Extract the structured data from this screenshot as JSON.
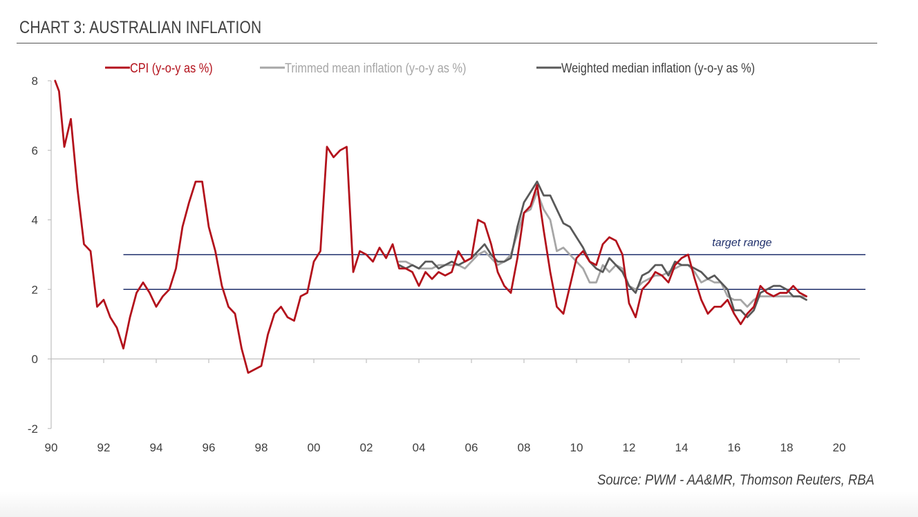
{
  "header": {
    "title": "CHART 3: AUSTRALIAN INFLATION"
  },
  "footer": {
    "source": "Source: PWM - AA&MR, Thomson Reuters, RBA"
  },
  "chart_data": {
    "type": "line",
    "title": "CHART 3: AUSTRALIAN INFLATION",
    "xlabel": "",
    "ylabel": "",
    "xlim": [
      1990,
      2021
    ],
    "ylim": [
      -2,
      8
    ],
    "x_ticks": [
      {
        "value": 1990,
        "label": "90"
      },
      {
        "value": 1992,
        "label": "92"
      },
      {
        "value": 1994,
        "label": "94"
      },
      {
        "value": 1996,
        "label": "96"
      },
      {
        "value": 1998,
        "label": "98"
      },
      {
        "value": 2000,
        "label": "00"
      },
      {
        "value": 2002,
        "label": "02"
      },
      {
        "value": 2004,
        "label": "04"
      },
      {
        "value": 2006,
        "label": "06"
      },
      {
        "value": 2008,
        "label": "08"
      },
      {
        "value": 2010,
        "label": "10"
      },
      {
        "value": 2012,
        "label": "12"
      },
      {
        "value": 2014,
        "label": "14"
      },
      {
        "value": 2016,
        "label": "16"
      },
      {
        "value": 2018,
        "label": "18"
      },
      {
        "value": 2020,
        "label": "20"
      }
    ],
    "y_ticks": [
      {
        "value": 8,
        "label": "8"
      },
      {
        "value": 6,
        "label": "6"
      },
      {
        "value": 4,
        "label": "4"
      },
      {
        "value": 2,
        "label": "2"
      },
      {
        "value": 0,
        "label": "0"
      },
      {
        "value": -2,
        "label": "-2"
      }
    ],
    "legend_position": "top",
    "series": [
      {
        "name": "CPI (y-o-y as %)",
        "color": "#b3121c",
        "points": [
          [
            1990.15,
            8.0
          ],
          [
            1990.3,
            7.7
          ],
          [
            1990.5,
            6.1
          ],
          [
            1990.75,
            6.9
          ],
          [
            1991.0,
            4.9
          ],
          [
            1991.25,
            3.3
          ],
          [
            1991.5,
            3.1
          ],
          [
            1991.75,
            1.5
          ],
          [
            1992.0,
            1.7
          ],
          [
            1992.25,
            1.2
          ],
          [
            1992.5,
            0.9
          ],
          [
            1992.75,
            0.3
          ],
          [
            1993.0,
            1.2
          ],
          [
            1993.25,
            1.9
          ],
          [
            1993.5,
            2.2
          ],
          [
            1993.75,
            1.9
          ],
          [
            1994.0,
            1.5
          ],
          [
            1994.25,
            1.8
          ],
          [
            1994.5,
            2.0
          ],
          [
            1994.75,
            2.6
          ],
          [
            1995.0,
            3.8
          ],
          [
            1995.25,
            4.5
          ],
          [
            1995.5,
            5.1
          ],
          [
            1995.75,
            5.1
          ],
          [
            1996.0,
            3.8
          ],
          [
            1996.25,
            3.1
          ],
          [
            1996.5,
            2.1
          ],
          [
            1996.75,
            1.5
          ],
          [
            1997.0,
            1.3
          ],
          [
            1997.25,
            0.3
          ],
          [
            1997.5,
            -0.4
          ],
          [
            1997.75,
            -0.3
          ],
          [
            1998.0,
            -0.2
          ],
          [
            1998.25,
            0.7
          ],
          [
            1998.5,
            1.3
          ],
          [
            1998.75,
            1.5
          ],
          [
            1999.0,
            1.2
          ],
          [
            1999.25,
            1.1
          ],
          [
            1999.5,
            1.8
          ],
          [
            1999.75,
            1.9
          ],
          [
            2000.0,
            2.8
          ],
          [
            2000.25,
            3.1
          ],
          [
            2000.5,
            6.1
          ],
          [
            2000.75,
            5.8
          ],
          [
            2001.0,
            6.0
          ],
          [
            2001.25,
            6.1
          ],
          [
            2001.5,
            2.5
          ],
          [
            2001.75,
            3.1
          ],
          [
            2002.0,
            3.0
          ],
          [
            2002.25,
            2.8
          ],
          [
            2002.5,
            3.2
          ],
          [
            2002.75,
            2.9
          ],
          [
            2003.0,
            3.3
          ],
          [
            2003.25,
            2.6
          ],
          [
            2003.5,
            2.6
          ],
          [
            2003.75,
            2.5
          ],
          [
            2004.0,
            2.1
          ],
          [
            2004.25,
            2.5
          ],
          [
            2004.5,
            2.3
          ],
          [
            2004.75,
            2.5
          ],
          [
            2005.0,
            2.4
          ],
          [
            2005.25,
            2.5
          ],
          [
            2005.5,
            3.1
          ],
          [
            2005.75,
            2.8
          ],
          [
            2006.0,
            2.9
          ],
          [
            2006.25,
            4.0
          ],
          [
            2006.5,
            3.9
          ],
          [
            2006.75,
            3.3
          ],
          [
            2007.0,
            2.5
          ],
          [
            2007.25,
            2.1
          ],
          [
            2007.5,
            1.9
          ],
          [
            2007.75,
            2.9
          ],
          [
            2008.0,
            4.2
          ],
          [
            2008.25,
            4.4
          ],
          [
            2008.5,
            5.0
          ],
          [
            2008.75,
            3.7
          ],
          [
            2009.0,
            2.5
          ],
          [
            2009.25,
            1.5
          ],
          [
            2009.5,
            1.3
          ],
          [
            2009.75,
            2.1
          ],
          [
            2010.0,
            2.9
          ],
          [
            2010.25,
            3.1
          ],
          [
            2010.5,
            2.8
          ],
          [
            2010.75,
            2.7
          ],
          [
            2011.0,
            3.3
          ],
          [
            2011.25,
            3.5
          ],
          [
            2011.5,
            3.4
          ],
          [
            2011.75,
            3.0
          ],
          [
            2012.0,
            1.6
          ],
          [
            2012.25,
            1.2
          ],
          [
            2012.5,
            2.0
          ],
          [
            2012.75,
            2.2
          ],
          [
            2013.0,
            2.5
          ],
          [
            2013.25,
            2.4
          ],
          [
            2013.5,
            2.2
          ],
          [
            2013.75,
            2.7
          ],
          [
            2014.0,
            2.9
          ],
          [
            2014.25,
            3.0
          ],
          [
            2014.5,
            2.3
          ],
          [
            2014.75,
            1.7
          ],
          [
            2015.0,
            1.3
          ],
          [
            2015.25,
            1.5
          ],
          [
            2015.5,
            1.5
          ],
          [
            2015.75,
            1.7
          ],
          [
            2016.0,
            1.3
          ],
          [
            2016.25,
            1.0
          ],
          [
            2016.5,
            1.3
          ],
          [
            2016.75,
            1.5
          ],
          [
            2017.0,
            2.1
          ],
          [
            2017.25,
            1.9
          ],
          [
            2017.5,
            1.8
          ],
          [
            2017.75,
            1.9
          ],
          [
            2018.0,
            1.9
          ],
          [
            2018.25,
            2.1
          ],
          [
            2018.5,
            1.9
          ],
          [
            2018.75,
            1.8
          ]
        ]
      },
      {
        "name": "Trimmed mean inflation (y-o-y as %)",
        "color": "#a6a6a6",
        "points": [
          [
            2003.25,
            2.8
          ],
          [
            2003.5,
            2.8
          ],
          [
            2003.75,
            2.7
          ],
          [
            2004.0,
            2.6
          ],
          [
            2004.25,
            2.6
          ],
          [
            2004.5,
            2.6
          ],
          [
            2004.75,
            2.7
          ],
          [
            2005.0,
            2.7
          ],
          [
            2005.25,
            2.7
          ],
          [
            2005.5,
            2.7
          ],
          [
            2005.75,
            2.6
          ],
          [
            2006.0,
            2.8
          ],
          [
            2006.25,
            3.0
          ],
          [
            2006.5,
            3.1
          ],
          [
            2006.75,
            2.9
          ],
          [
            2007.0,
            2.7
          ],
          [
            2007.25,
            2.8
          ],
          [
            2007.5,
            3.0
          ],
          [
            2007.75,
            3.6
          ],
          [
            2008.0,
            4.2
          ],
          [
            2008.25,
            4.3
          ],
          [
            2008.5,
            4.8
          ],
          [
            2008.75,
            4.3
          ],
          [
            2009.0,
            4.0
          ],
          [
            2009.25,
            3.1
          ],
          [
            2009.5,
            3.2
          ],
          [
            2009.75,
            3.0
          ],
          [
            2010.0,
            2.8
          ],
          [
            2010.25,
            2.6
          ],
          [
            2010.5,
            2.2
          ],
          [
            2010.75,
            2.2
          ],
          [
            2011.0,
            2.7
          ],
          [
            2011.25,
            2.5
          ],
          [
            2011.5,
            2.7
          ],
          [
            2011.75,
            2.6
          ],
          [
            2012.0,
            2.1
          ],
          [
            2012.25,
            2.0
          ],
          [
            2012.5,
            2.2
          ],
          [
            2012.75,
            2.3
          ],
          [
            2013.0,
            2.4
          ],
          [
            2013.25,
            2.4
          ],
          [
            2013.5,
            2.5
          ],
          [
            2013.75,
            2.6
          ],
          [
            2014.0,
            2.7
          ],
          [
            2014.25,
            2.7
          ],
          [
            2014.5,
            2.5
          ],
          [
            2014.75,
            2.2
          ],
          [
            2015.0,
            2.3
          ],
          [
            2015.25,
            2.2
          ],
          [
            2015.5,
            2.2
          ],
          [
            2015.75,
            1.8
          ],
          [
            2016.0,
            1.7
          ],
          [
            2016.25,
            1.7
          ],
          [
            2016.5,
            1.5
          ],
          [
            2016.75,
            1.7
          ],
          [
            2017.0,
            1.8
          ],
          [
            2017.25,
            1.8
          ],
          [
            2017.5,
            1.8
          ],
          [
            2017.75,
            1.8
          ],
          [
            2018.0,
            1.8
          ],
          [
            2018.25,
            1.8
          ],
          [
            2018.5,
            1.8
          ],
          [
            2018.75,
            1.8
          ]
        ]
      },
      {
        "name": "Weighted median inflation (y-o-y as %)",
        "color": "#595959",
        "points": [
          [
            2003.25,
            2.7
          ],
          [
            2003.5,
            2.6
          ],
          [
            2003.75,
            2.7
          ],
          [
            2004.0,
            2.6
          ],
          [
            2004.25,
            2.8
          ],
          [
            2004.5,
            2.8
          ],
          [
            2004.75,
            2.6
          ],
          [
            2005.0,
            2.7
          ],
          [
            2005.25,
            2.8
          ],
          [
            2005.5,
            2.7
          ],
          [
            2005.75,
            2.8
          ],
          [
            2006.0,
            2.9
          ],
          [
            2006.25,
            3.1
          ],
          [
            2006.5,
            3.3
          ],
          [
            2006.75,
            3.0
          ],
          [
            2007.0,
            2.8
          ],
          [
            2007.25,
            2.8
          ],
          [
            2007.5,
            2.9
          ],
          [
            2007.75,
            3.8
          ],
          [
            2008.0,
            4.5
          ],
          [
            2008.25,
            4.8
          ],
          [
            2008.5,
            5.1
          ],
          [
            2008.75,
            4.7
          ],
          [
            2009.0,
            4.7
          ],
          [
            2009.25,
            4.3
          ],
          [
            2009.5,
            3.9
          ],
          [
            2009.75,
            3.8
          ],
          [
            2010.0,
            3.5
          ],
          [
            2010.25,
            3.2
          ],
          [
            2010.5,
            2.8
          ],
          [
            2010.75,
            2.6
          ],
          [
            2011.0,
            2.5
          ],
          [
            2011.25,
            2.9
          ],
          [
            2011.5,
            2.7
          ],
          [
            2011.75,
            2.5
          ],
          [
            2012.0,
            2.1
          ],
          [
            2012.25,
            1.9
          ],
          [
            2012.5,
            2.4
          ],
          [
            2012.75,
            2.5
          ],
          [
            2013.0,
            2.7
          ],
          [
            2013.25,
            2.7
          ],
          [
            2013.5,
            2.4
          ],
          [
            2013.75,
            2.8
          ],
          [
            2014.0,
            2.7
          ],
          [
            2014.25,
            2.7
          ],
          [
            2014.5,
            2.6
          ],
          [
            2014.75,
            2.5
          ],
          [
            2015.0,
            2.3
          ],
          [
            2015.25,
            2.4
          ],
          [
            2015.5,
            2.2
          ],
          [
            2015.75,
            2.0
          ],
          [
            2016.0,
            1.4
          ],
          [
            2016.25,
            1.4
          ],
          [
            2016.5,
            1.2
          ],
          [
            2016.75,
            1.4
          ],
          [
            2017.0,
            1.9
          ],
          [
            2017.25,
            2.0
          ],
          [
            2017.5,
            2.1
          ],
          [
            2017.75,
            2.1
          ],
          [
            2018.0,
            2.0
          ],
          [
            2018.25,
            1.8
          ],
          [
            2018.5,
            1.8
          ],
          [
            2018.75,
            1.7
          ]
        ]
      }
    ],
    "reference_lines": [
      {
        "name": "target-range-upper",
        "y": 3,
        "x_start": 1992.75,
        "x_end": 2021,
        "color": "#1f2f6b"
      },
      {
        "name": "target-range-lower",
        "y": 2,
        "x_start": 1992.75,
        "x_end": 2021,
        "color": "#1f2f6b"
      }
    ],
    "annotations": [
      {
        "text": "target range",
        "x": 2016.3,
        "y": 3.25
      }
    ]
  }
}
